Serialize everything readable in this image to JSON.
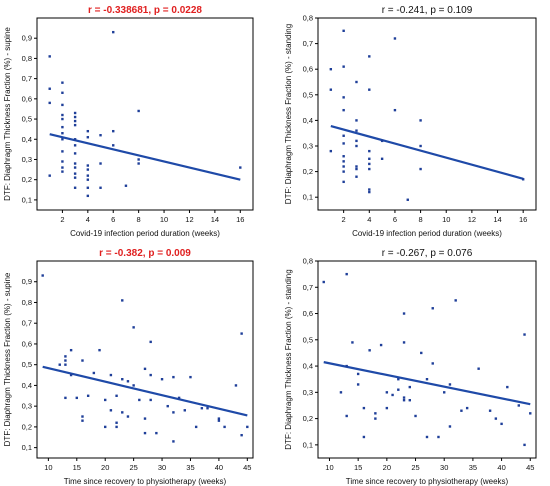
{
  "colors": {
    "point": "#1f3f99",
    "line": "#1f4aa8",
    "axis": "#000000",
    "highlight": "#e02020"
  },
  "chart_data": [
    {
      "type": "scatter",
      "title": "r = -0.338681, p = 0.0228",
      "title_highlighted": true,
      "xlabel": "Covid-19 infection period duration (weeks)",
      "ylabel": "DTF: Diaphragm Thickness Fraction (%) - supine",
      "xlim": [
        0,
        17
      ],
      "ylim": [
        0.05,
        1.0
      ],
      "xticks": [
        2,
        4,
        6,
        8,
        10,
        12,
        14,
        16
      ],
      "yticks": [
        0.1,
        0.2,
        0.3,
        0.4,
        0.5,
        0.6,
        0.7,
        0.8,
        0.9
      ],
      "ytick_labels": [
        "0,1",
        "0,2",
        "0,3",
        "0,4",
        "0,5",
        "0,6",
        "0,7",
        "0,8",
        "0,9"
      ],
      "points": [
        [
          1,
          0.81
        ],
        [
          1,
          0.65
        ],
        [
          1,
          0.58
        ],
        [
          1,
          0.22
        ],
        [
          2,
          0.68
        ],
        [
          2,
          0.63
        ],
        [
          2,
          0.57
        ],
        [
          2,
          0.52
        ],
        [
          2,
          0.5
        ],
        [
          2,
          0.46
        ],
        [
          2,
          0.43
        ],
        [
          2,
          0.4
        ],
        [
          2,
          0.34
        ],
        [
          2,
          0.29
        ],
        [
          2,
          0.26
        ],
        [
          2,
          0.24
        ],
        [
          3,
          0.53
        ],
        [
          3,
          0.51
        ],
        [
          3,
          0.49
        ],
        [
          3,
          0.47
        ],
        [
          3,
          0.4
        ],
        [
          3,
          0.37
        ],
        [
          3,
          0.33
        ],
        [
          3,
          0.28
        ],
        [
          3,
          0.26
        ],
        [
          3,
          0.23
        ],
        [
          3,
          0.21
        ],
        [
          3,
          0.16
        ],
        [
          4,
          0.44
        ],
        [
          4,
          0.41
        ],
        [
          4,
          0.27
        ],
        [
          4,
          0.25
        ],
        [
          4,
          0.22
        ],
        [
          4,
          0.2
        ],
        [
          4,
          0.16
        ],
        [
          4,
          0.12
        ],
        [
          5,
          0.42
        ],
        [
          5,
          0.28
        ],
        [
          5,
          0.16
        ],
        [
          6,
          0.93
        ],
        [
          6,
          0.44
        ],
        [
          6,
          0.37
        ],
        [
          7,
          0.17
        ],
        [
          8,
          0.54
        ],
        [
          8,
          0.3
        ],
        [
          8,
          0.28
        ],
        [
          16,
          0.26
        ]
      ],
      "fit": {
        "x": [
          1,
          16
        ],
        "y": [
          0.425,
          0.2
        ]
      }
    },
    {
      "type": "scatter",
      "title": "r = -0.241, p = 0.109",
      "title_highlighted": false,
      "xlabel": "Covid-19 infection period duration (weeks)",
      "ylabel": "DTF: Diaphragm Thickness Fraction (%) - standing",
      "xlim": [
        0,
        17
      ],
      "ylim": [
        0.05,
        0.8
      ],
      "xticks": [
        2,
        4,
        6,
        8,
        10,
        12,
        14,
        16
      ],
      "yticks": [
        0.1,
        0.2,
        0.3,
        0.4,
        0.5,
        0.6,
        0.7,
        0.8
      ],
      "ytick_labels": [
        "0,1",
        "0,2",
        "0,3",
        "0,4",
        "0,5",
        "0,6",
        "0,7",
        "0,8"
      ],
      "points": [
        [
          1,
          0.6
        ],
        [
          1,
          0.52
        ],
        [
          1,
          0.28
        ],
        [
          2,
          0.75
        ],
        [
          2,
          0.61
        ],
        [
          2,
          0.49
        ],
        [
          2,
          0.44
        ],
        [
          2,
          0.34
        ],
        [
          2,
          0.31
        ],
        [
          2,
          0.26
        ],
        [
          2,
          0.24
        ],
        [
          2,
          0.22
        ],
        [
          2,
          0.2
        ],
        [
          2,
          0.16
        ],
        [
          3,
          0.55
        ],
        [
          3,
          0.4
        ],
        [
          3,
          0.36
        ],
        [
          3,
          0.32
        ],
        [
          3,
          0.3
        ],
        [
          3,
          0.22
        ],
        [
          3,
          0.21
        ],
        [
          3,
          0.18
        ],
        [
          4,
          0.65
        ],
        [
          4,
          0.52
        ],
        [
          4,
          0.28
        ],
        [
          4,
          0.25
        ],
        [
          4,
          0.23
        ],
        [
          4,
          0.21
        ],
        [
          4,
          0.13
        ],
        [
          4,
          0.12
        ],
        [
          5,
          0.32
        ],
        [
          5,
          0.25
        ],
        [
          6,
          0.72
        ],
        [
          6,
          0.44
        ],
        [
          7,
          0.09
        ],
        [
          8,
          0.4
        ],
        [
          8,
          0.3
        ],
        [
          8,
          0.21
        ],
        [
          16,
          0.17
        ]
      ],
      "fit": {
        "x": [
          1,
          16
        ],
        "y": [
          0.378,
          0.172
        ]
      }
    },
    {
      "type": "scatter",
      "title": "r = -0.382, p = 0.009",
      "title_highlighted": true,
      "xlabel": "Time since recovery to physiotherapy (weeks)",
      "ylabel": "DTF: Diaphragm Thickness Fraction (%) - supine",
      "xlim": [
        8,
        46
      ],
      "ylim": [
        0.05,
        1.0
      ],
      "xticks": [
        10,
        15,
        20,
        25,
        30,
        35,
        40,
        45
      ],
      "yticks": [
        0.1,
        0.2,
        0.3,
        0.4,
        0.5,
        0.6,
        0.7,
        0.8,
        0.9
      ],
      "ytick_labels": [
        "0,1",
        "0,2",
        "0,3",
        "0,4",
        "0,5",
        "0,6",
        "0,7",
        "0,8",
        "0,9"
      ],
      "points": [
        [
          9,
          0.93
        ],
        [
          12,
          0.5
        ],
        [
          13,
          0.54
        ],
        [
          13,
          0.52
        ],
        [
          13,
          0.5
        ],
        [
          13,
          0.34
        ],
        [
          14,
          0.57
        ],
        [
          14,
          0.45
        ],
        [
          15,
          0.34
        ],
        [
          16,
          0.52
        ],
        [
          16,
          0.25
        ],
        [
          16,
          0.23
        ],
        [
          17,
          0.35
        ],
        [
          18,
          0.46
        ],
        [
          19,
          0.57
        ],
        [
          20,
          0.33
        ],
        [
          20,
          0.2
        ],
        [
          21,
          0.45
        ],
        [
          21,
          0.28
        ],
        [
          22,
          0.35
        ],
        [
          22,
          0.22
        ],
        [
          22,
          0.2
        ],
        [
          23,
          0.81
        ],
        [
          23,
          0.43
        ],
        [
          23,
          0.27
        ],
        [
          24,
          0.42
        ],
        [
          24,
          0.25
        ],
        [
          25,
          0.68
        ],
        [
          25,
          0.4
        ],
        [
          26,
          0.33
        ],
        [
          27,
          0.48
        ],
        [
          27,
          0.24
        ],
        [
          27,
          0.17
        ],
        [
          28,
          0.61
        ],
        [
          28,
          0.45
        ],
        [
          28,
          0.33
        ],
        [
          29,
          0.17
        ],
        [
          30,
          0.43
        ],
        [
          31,
          0.3
        ],
        [
          32,
          0.44
        ],
        [
          32,
          0.27
        ],
        [
          32,
          0.13
        ],
        [
          33,
          0.34
        ],
        [
          34,
          0.28
        ],
        [
          35,
          0.44
        ],
        [
          36,
          0.2
        ],
        [
          37,
          0.29
        ],
        [
          38,
          0.29
        ],
        [
          40,
          0.24
        ],
        [
          40,
          0.23
        ],
        [
          41,
          0.2
        ],
        [
          43,
          0.4
        ],
        [
          44,
          0.65
        ],
        [
          44,
          0.16
        ],
        [
          45,
          0.2
        ]
      ],
      "fit": {
        "x": [
          9,
          45
        ],
        "y": [
          0.49,
          0.255
        ]
      }
    },
    {
      "type": "scatter",
      "title": "r = -0.267, p = 0.076",
      "title_highlighted": false,
      "xlabel": "Time since recovery to physiotherapy (weeks)",
      "ylabel": "DTF: Diaphragm Thickness Fraction (%) - standing",
      "xlim": [
        8,
        46
      ],
      "ylim": [
        0.05,
        0.8
      ],
      "xticks": [
        10,
        15,
        20,
        25,
        30,
        35,
        40,
        45
      ],
      "yticks": [
        0.1,
        0.2,
        0.3,
        0.4,
        0.5,
        0.6,
        0.7,
        0.8
      ],
      "ytick_labels": [
        "0,1",
        "0,2",
        "0,3",
        "0,4",
        "0,5",
        "0,6",
        "0,7",
        "0,8"
      ],
      "points": [
        [
          9,
          0.72
        ],
        [
          12,
          0.3
        ],
        [
          13,
          0.75
        ],
        [
          13,
          0.4
        ],
        [
          13,
          0.21
        ],
        [
          14,
          0.49
        ],
        [
          15,
          0.37
        ],
        [
          15,
          0.33
        ],
        [
          16,
          0.24
        ],
        [
          16,
          0.13
        ],
        [
          17,
          0.46
        ],
        [
          18,
          0.22
        ],
        [
          18,
          0.2
        ],
        [
          19,
          0.48
        ],
        [
          20,
          0.3
        ],
        [
          20,
          0.24
        ],
        [
          21,
          0.29
        ],
        [
          22,
          0.35
        ],
        [
          22,
          0.31
        ],
        [
          23,
          0.6
        ],
        [
          23,
          0.49
        ],
        [
          23,
          0.28
        ],
        [
          23,
          0.27
        ],
        [
          24,
          0.32
        ],
        [
          24,
          0.27
        ],
        [
          25,
          0.21
        ],
        [
          26,
          0.45
        ],
        [
          27,
          0.35
        ],
        [
          27,
          0.13
        ],
        [
          28,
          0.62
        ],
        [
          28,
          0.41
        ],
        [
          29,
          0.13
        ],
        [
          30,
          0.3
        ],
        [
          31,
          0.33
        ],
        [
          31,
          0.17
        ],
        [
          32,
          0.65
        ],
        [
          33,
          0.23
        ],
        [
          34,
          0.24
        ],
        [
          36,
          0.39
        ],
        [
          38,
          0.23
        ],
        [
          39,
          0.2
        ],
        [
          40,
          0.18
        ],
        [
          41,
          0.32
        ],
        [
          43,
          0.25
        ],
        [
          44,
          0.52
        ],
        [
          44,
          0.1
        ],
        [
          45,
          0.22
        ]
      ],
      "fit": {
        "x": [
          9,
          45
        ],
        "y": [
          0.415,
          0.255
        ]
      }
    }
  ]
}
